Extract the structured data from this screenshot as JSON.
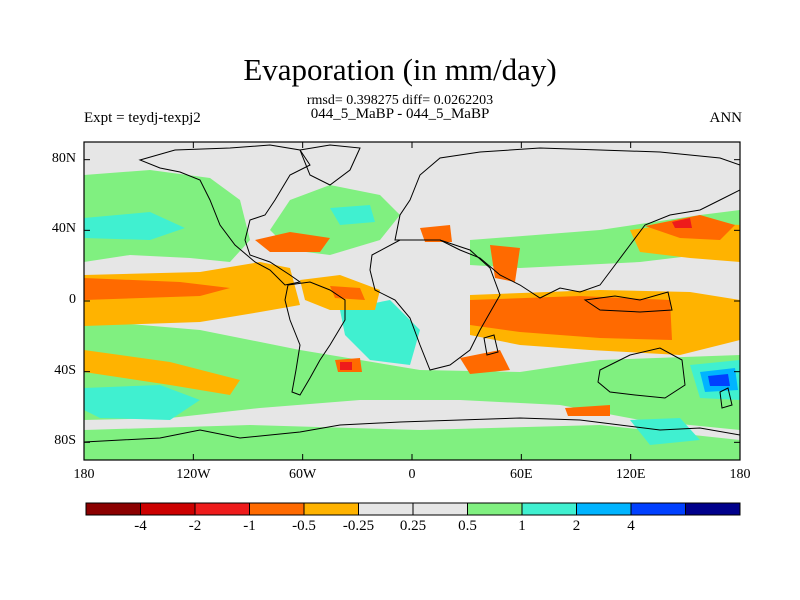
{
  "title": "Evaporation (in mm/day)",
  "stats_text": "rmsd= 0.398275 diff= 0.0262203",
  "subtitle": "044_5_MaBP - 044_5_MaBP",
  "left_label": "Expt = teydj-texpj2",
  "right_label": "ANN",
  "map": {
    "background_color": "#e6e6e6",
    "x_ticks": [
      {
        "lon": -180,
        "label": "180"
      },
      {
        "lon": -120,
        "label": "120W"
      },
      {
        "lon": -60,
        "label": "60W"
      },
      {
        "lon": 0,
        "label": "0"
      },
      {
        "lon": 60,
        "label": "60E"
      },
      {
        "lon": 120,
        "label": "120E"
      },
      {
        "lon": 180,
        "label": "180"
      }
    ],
    "y_ticks": [
      {
        "lat": 80,
        "label": "80N"
      },
      {
        "lat": 40,
        "label": "40N"
      },
      {
        "lat": 0,
        "label": "0"
      },
      {
        "lat": -40,
        "label": "40S"
      },
      {
        "lat": -80,
        "label": "80S"
      }
    ],
    "lat_range": [
      -90,
      90
    ],
    "lon_range": [
      -180,
      180
    ]
  },
  "colorbar": {
    "colors": [
      "#8b0000",
      "#cc0000",
      "#ee1b1b",
      "#ff6a00",
      "#ffb300",
      "#e6e6e6",
      "#e6e6e6",
      "#80f080",
      "#40f0d0",
      "#00b4ff",
      "#0040ff",
      "#00008b"
    ],
    "labels": [
      {
        "at": 1,
        "label": "-4"
      },
      {
        "at": 2,
        "label": "-2"
      },
      {
        "at": 3,
        "label": "-1"
      },
      {
        "at": 4,
        "label": "-0.5"
      },
      {
        "at": 5,
        "label": "-0.25"
      },
      {
        "at": 6,
        "label": "0.25"
      },
      {
        "at": 7,
        "label": "0.5"
      },
      {
        "at": 8,
        "label": "1"
      },
      {
        "at": 9,
        "label": "2"
      },
      {
        "at": 10,
        "label": "4"
      }
    ]
  }
}
